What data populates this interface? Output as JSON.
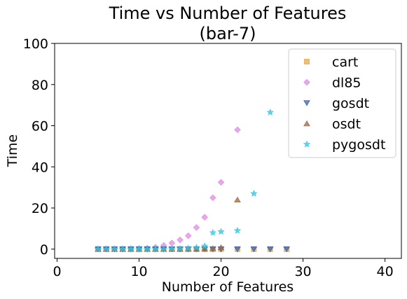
{
  "chart_data": {
    "type": "scatter",
    "title": "Time vs Number of Features",
    "subtitle": "(bar-7)",
    "xlabel": "Number of Features",
    "ylabel": "Time",
    "xlim": [
      -0.3,
      42
    ],
    "ylim": [
      -4.5,
      100
    ],
    "xticks": [
      0,
      10,
      20,
      30,
      40
    ],
    "yticks": [
      0,
      20,
      40,
      60,
      80,
      100
    ],
    "grid": false,
    "legend_position": "top-right",
    "series": [
      {
        "name": "cart",
        "marker": "square",
        "color": "#e8a94c",
        "x": [
          5,
          6,
          7,
          8,
          9,
          10,
          11,
          12,
          13,
          14,
          15,
          16,
          17,
          18,
          19,
          20,
          22,
          24,
          26,
          28
        ],
        "y": [
          0,
          0,
          0,
          0,
          0,
          0,
          0,
          0,
          0,
          0,
          0,
          0,
          0,
          0,
          0,
          0,
          0,
          0,
          0,
          0
        ]
      },
      {
        "name": "dl85",
        "marker": "diamond",
        "color": "#e08be6",
        "x": [
          5,
          6,
          7,
          8,
          9,
          10,
          11,
          12,
          13,
          14,
          15,
          16,
          17,
          18,
          19,
          20,
          22
        ],
        "y": [
          0.1,
          0.1,
          0.1,
          0.1,
          0.2,
          0.3,
          0.5,
          0.9,
          1.8,
          3,
          4.5,
          6.5,
          10.5,
          15.5,
          25,
          32.5,
          58
        ]
      },
      {
        "name": "gosdt",
        "marker": "triangle-down",
        "color": "#3b62ab",
        "x": [
          5,
          6,
          7,
          8,
          9,
          10,
          11,
          12,
          13,
          14,
          15,
          16,
          17,
          18,
          19,
          20,
          22,
          24,
          26,
          28
        ],
        "y": [
          0,
          0,
          0,
          0,
          0,
          0,
          0,
          0,
          0,
          0,
          0,
          0,
          0,
          0,
          0,
          0,
          0,
          0,
          0,
          0
        ]
      },
      {
        "name": "osdt",
        "marker": "triangle-up",
        "color": "#9c6a44",
        "x": [
          5,
          6,
          7,
          8,
          9,
          10,
          11,
          12,
          13,
          14,
          15,
          16,
          17,
          18,
          19,
          20,
          22
        ],
        "y": [
          0,
          0,
          0,
          0,
          0,
          0,
          0,
          0,
          0,
          0,
          0,
          0.1,
          0.1,
          0.2,
          0.3,
          0.8,
          24
        ]
      },
      {
        "name": "pygosdt",
        "marker": "star",
        "color": "#2fc6e6",
        "x": [
          5,
          6,
          7,
          8,
          9,
          10,
          11,
          12,
          13,
          14,
          15,
          16,
          17,
          18,
          19,
          20,
          22,
          24,
          26
        ],
        "y": [
          0,
          0,
          0,
          0,
          0,
          0,
          0,
          0,
          0,
          0.1,
          0.2,
          0.4,
          0.8,
          1.5,
          8,
          8.5,
          9,
          27,
          66.5
        ]
      }
    ]
  }
}
